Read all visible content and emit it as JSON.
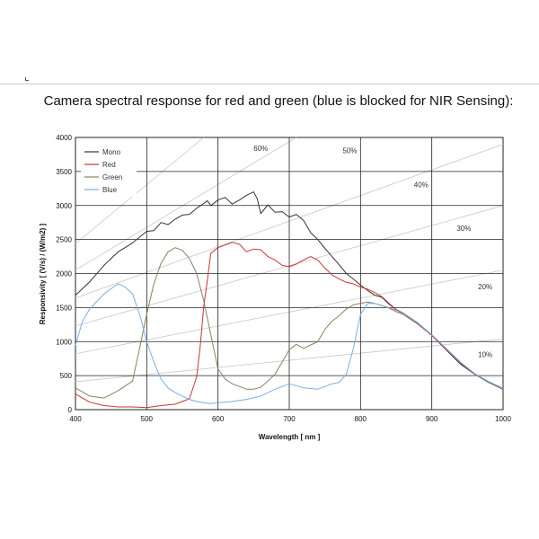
{
  "chart_data": {
    "type": "line",
    "title": "Camera spectral response for red and green (blue is blocked for NIR Sensing):",
    "xlabel": "Wavelength  [ nm ]",
    "ylabel": "Responsivity  [ (V/s) / (W/m2) ]",
    "xlim": [
      400,
      1000
    ],
    "ylim": [
      0,
      4000
    ],
    "xticks": [
      400,
      500,
      600,
      700,
      800,
      900,
      1000
    ],
    "yticks": [
      0,
      500,
      1000,
      1500,
      2000,
      2500,
      3000,
      3500,
      4000
    ],
    "grid": true,
    "legend_position": "top-left",
    "series": [
      {
        "name": "Mono",
        "color": "#333333",
        "x": [
          400,
          420,
          440,
          460,
          480,
          500,
          510,
          520,
          530,
          540,
          550,
          560,
          570,
          580,
          585,
          590,
          600,
          610,
          620,
          630,
          640,
          650,
          655,
          660,
          670,
          680,
          690,
          700,
          710,
          720,
          730,
          740,
          750,
          760,
          770,
          780,
          790,
          800,
          810,
          820,
          830,
          840,
          850,
          860,
          880,
          900,
          920,
          940,
          960,
          980,
          1000
        ],
        "y": [
          1680,
          1880,
          2120,
          2320,
          2450,
          2620,
          2630,
          2750,
          2720,
          2800,
          2860,
          2870,
          2960,
          3030,
          3070,
          3000,
          3080,
          3120,
          3020,
          3080,
          3150,
          3200,
          3100,
          2880,
          3010,
          2900,
          2910,
          2830,
          2870,
          2780,
          2600,
          2500,
          2370,
          2250,
          2130,
          2000,
          1920,
          1830,
          1750,
          1680,
          1650,
          1550,
          1470,
          1420,
          1270,
          1090,
          880,
          670,
          520,
          400,
          300
        ]
      },
      {
        "name": "Red",
        "color": "#cc3333",
        "x": [
          400,
          420,
          440,
          460,
          480,
          500,
          520,
          540,
          560,
          570,
          575,
          580,
          585,
          590,
          600,
          610,
          620,
          630,
          640,
          650,
          660,
          670,
          680,
          690,
          700,
          710,
          720,
          730,
          740,
          750,
          760,
          770,
          780,
          790,
          800,
          810,
          820,
          830,
          840,
          850,
          860,
          880,
          900,
          920,
          940,
          960,
          980,
          1000
        ],
        "y": [
          230,
          110,
          60,
          40,
          40,
          30,
          60,
          80,
          160,
          480,
          920,
          1520,
          1900,
          2300,
          2380,
          2420,
          2460,
          2430,
          2320,
          2360,
          2350,
          2250,
          2200,
          2120,
          2100,
          2140,
          2200,
          2250,
          2200,
          2080,
          1980,
          1920,
          1870,
          1850,
          1800,
          1770,
          1720,
          1660,
          1560,
          1470,
          1400,
          1260,
          1090,
          890,
          690,
          520,
          410,
          310
        ]
      },
      {
        "name": "Green",
        "color": "#8a8060",
        "x": [
          400,
          420,
          440,
          460,
          480,
          490,
          500,
          510,
          520,
          530,
          540,
          550,
          560,
          570,
          580,
          590,
          600,
          610,
          620,
          630,
          640,
          650,
          660,
          670,
          680,
          690,
          700,
          710,
          720,
          730,
          740,
          750,
          760,
          770,
          780,
          790,
          800,
          810,
          820,
          830,
          840,
          850,
          860,
          880,
          900,
          920,
          940,
          960,
          980,
          1000
        ],
        "y": [
          320,
          200,
          170,
          280,
          420,
          900,
          1400,
          1850,
          2150,
          2320,
          2380,
          2340,
          2220,
          2000,
          1600,
          1100,
          600,
          450,
          380,
          340,
          300,
          300,
          330,
          420,
          520,
          700,
          880,
          960,
          900,
          950,
          1000,
          1180,
          1300,
          1380,
          1480,
          1540,
          1560,
          1580,
          1560,
          1530,
          1490,
          1440,
          1400,
          1270,
          1100,
          900,
          700,
          530,
          410,
          310
        ]
      },
      {
        "name": "Blue",
        "color": "#7aaee0",
        "x": [
          400,
          410,
          420,
          440,
          450,
          460,
          470,
          480,
          490,
          500,
          510,
          520,
          530,
          540,
          550,
          560,
          570,
          580,
          590,
          600,
          620,
          640,
          660,
          680,
          700,
          720,
          740,
          760,
          770,
          780,
          790,
          800,
          810,
          820,
          830,
          840,
          850,
          860,
          880,
          900,
          920,
          940,
          960,
          980,
          1000
        ],
        "y": [
          950,
          1300,
          1480,
          1700,
          1780,
          1850,
          1800,
          1700,
          1400,
          1000,
          700,
          450,
          320,
          250,
          200,
          150,
          120,
          100,
          90,
          100,
          120,
          150,
          200,
          300,
          380,
          320,
          300,
          380,
          400,
          520,
          900,
          1400,
          1560,
          1560,
          1530,
          1500,
          1460,
          1420,
          1280,
          1100,
          900,
          700,
          530,
          410,
          310
        ]
      }
    ],
    "annotations": [
      {
        "text": "60%",
        "x": 660,
        "y": 3800
      },
      {
        "text": "50%",
        "x": 785,
        "y": 3770
      },
      {
        "text": "40%",
        "x": 885,
        "y": 3270
      },
      {
        "text": "30%",
        "x": 945,
        "y": 2630
      },
      {
        "text": "20%",
        "x": 975,
        "y": 1770
      },
      {
        "text": "10%",
        "x": 975,
        "y": 770
      }
    ],
    "percent_lines": [
      {
        "x": [
          400,
          580
        ],
        "y": [
          2440,
          4000
        ]
      },
      {
        "x": [
          400,
          710
        ],
        "y": [
          2050,
          4000
        ]
      },
      {
        "x": [
          400,
          1000
        ],
        "y": [
          1640,
          3900
        ]
      },
      {
        "x": [
          400,
          1000
        ],
        "y": [
          1230,
          3000
        ]
      },
      {
        "x": [
          400,
          1000
        ],
        "y": [
          820,
          2050
        ]
      },
      {
        "x": [
          400,
          1000
        ],
        "y": [
          410,
          1040
        ]
      }
    ]
  }
}
